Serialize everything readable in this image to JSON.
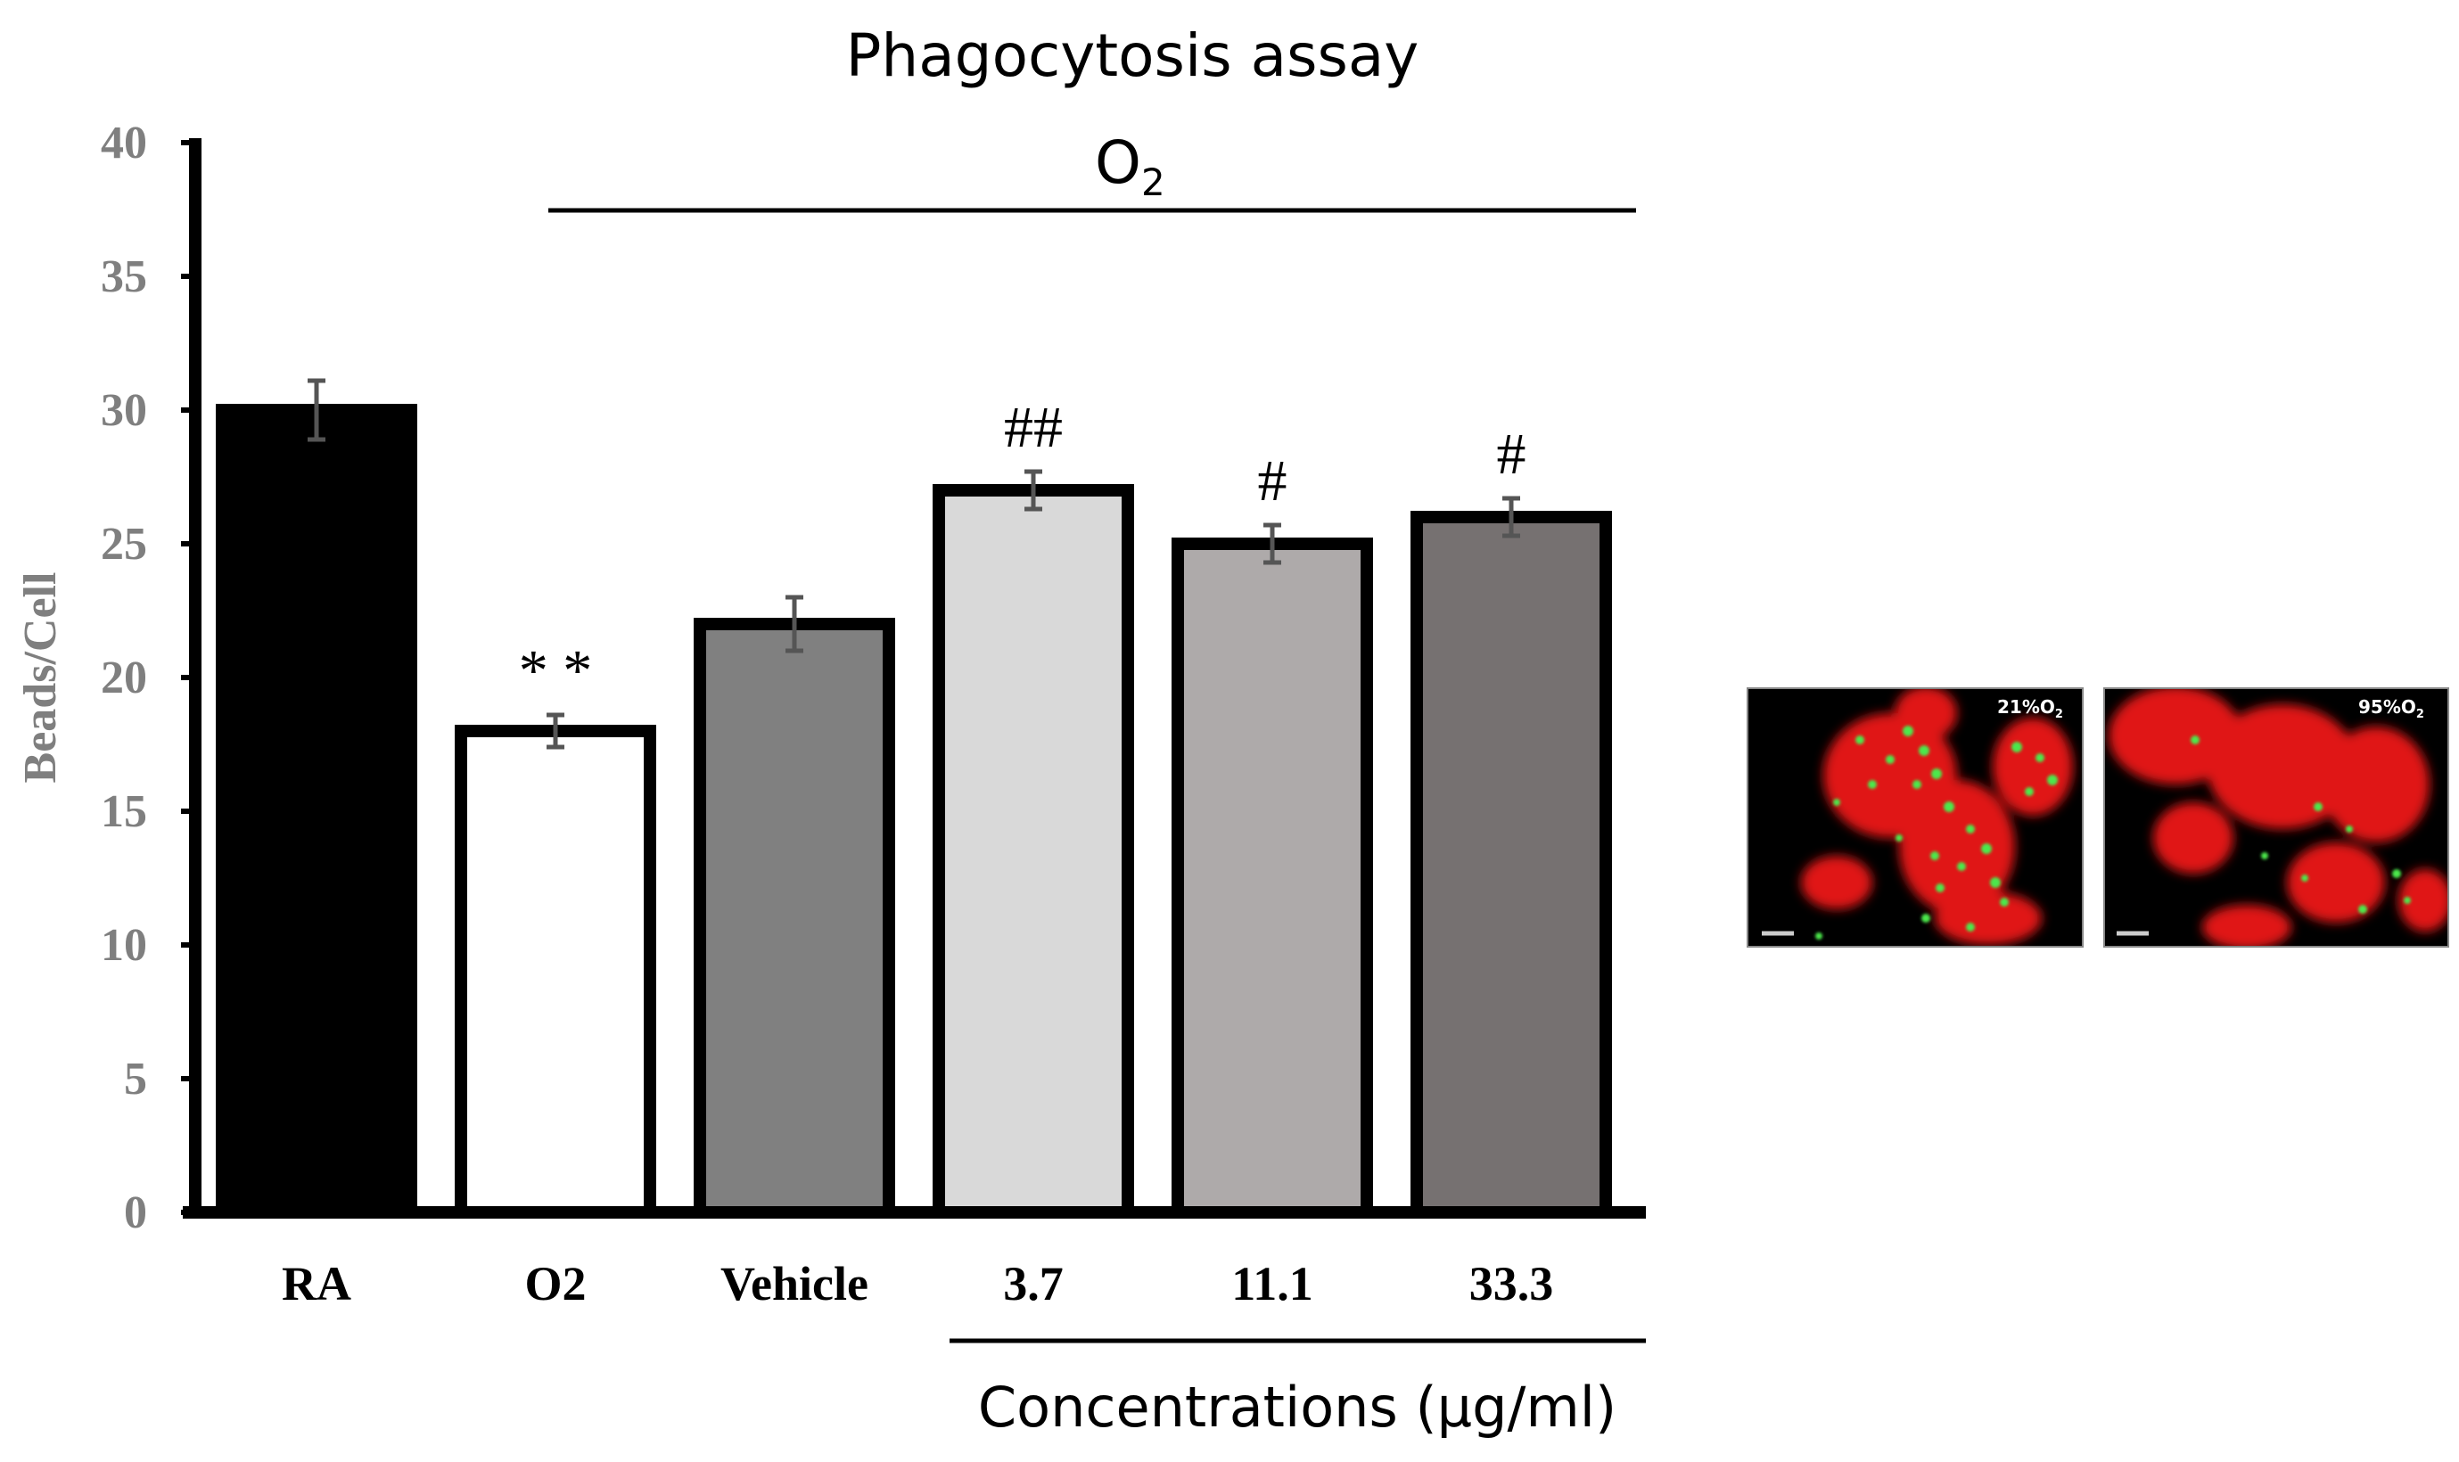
{
  "chart_data": {
    "type": "bar",
    "title": "Phagocytosis assay",
    "subtitle": {
      "base": "O",
      "sub": "2"
    },
    "ylabel": "Beads/Cell",
    "xlabel": "Concentrations (µg/ml)",
    "ylim": [
      0,
      40
    ],
    "yticks": [
      "0",
      "5",
      "10",
      "15",
      "20",
      "25",
      "30",
      "35",
      "40"
    ],
    "categories": [
      "RA",
      "O2",
      "Vehicle",
      "3.7",
      "11.1",
      "33.3"
    ],
    "values": [
      30,
      18,
      22,
      27,
      25,
      26
    ],
    "errors": [
      1.1,
      0.6,
      1.0,
      0.7,
      0.7,
      0.7
    ],
    "annotations": [
      "",
      "* *",
      "",
      "##",
      "#",
      "#"
    ],
    "bar_fill_colors": [
      "#000000",
      "#ffffff",
      "#808080",
      "#d9d9d9",
      "#aeaaaa",
      "#767171"
    ],
    "grid": false,
    "legend": "none"
  },
  "micrographs": [
    {
      "label": "21%O",
      "sub": "2"
    },
    {
      "label": "95%O",
      "sub": "2"
    }
  ]
}
